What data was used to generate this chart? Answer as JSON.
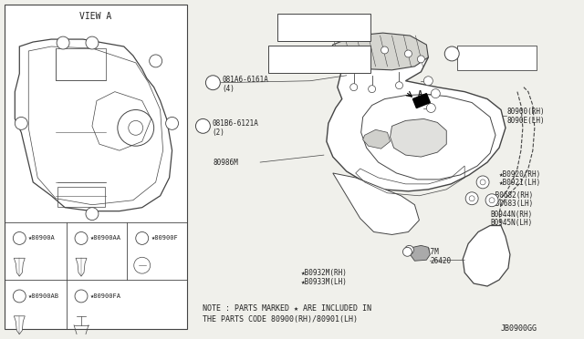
{
  "bg_color": "#f0f0eb",
  "line_color": "#444444",
  "text_color": "#222222",
  "note_line1": "NOTE : PARTS MARKED ★ ARE INCLUDED IN",
  "note_line2": "THE PARTS CODE 80900(RH)/80901(LH)",
  "diagram_code": "JB0900GG",
  "view_a_label": "VIEW A"
}
